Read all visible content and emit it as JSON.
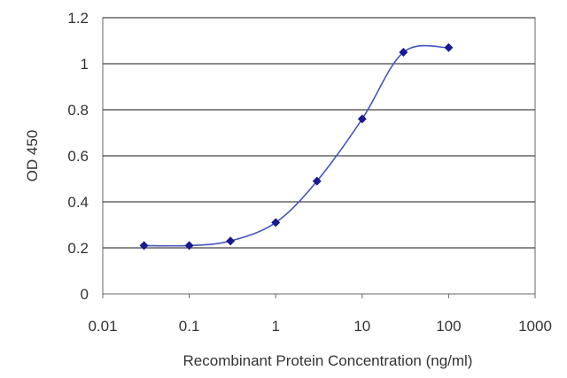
{
  "chart_data": {
    "type": "line",
    "title": "",
    "xlabel": "Recombinant Protein Concentration (ng/ml)",
    "ylabel": "OD 450",
    "x_scale": "log",
    "xlim": [
      0.01,
      1000
    ],
    "ylim": [
      0,
      1.2
    ],
    "x_ticks": [
      0.01,
      0.1,
      1,
      10,
      100,
      1000
    ],
    "x_tick_labels": [
      "0.01",
      "0.1",
      "1",
      "10",
      "100",
      "1000"
    ],
    "y_ticks": [
      0,
      0.2,
      0.4,
      0.6,
      0.8,
      1,
      1.2
    ],
    "y_tick_labels": [
      "0",
      "0.2",
      "0.4",
      "0.6",
      "0.8",
      "1",
      "1.2"
    ],
    "grid": "horizontal",
    "legend": "none",
    "series": [
      {
        "x": [
          0.03,
          0.1,
          0.3,
          1,
          3,
          10,
          30,
          100
        ],
        "y": [
          0.21,
          0.21,
          0.23,
          0.31,
          0.49,
          0.76,
          1.05,
          1.07
        ],
        "color": "#1a1a8c"
      }
    ],
    "colors": {
      "line": "#4455bb",
      "marker": "#1a1a8c",
      "grid": "#444444",
      "frame": "#666666"
    }
  }
}
